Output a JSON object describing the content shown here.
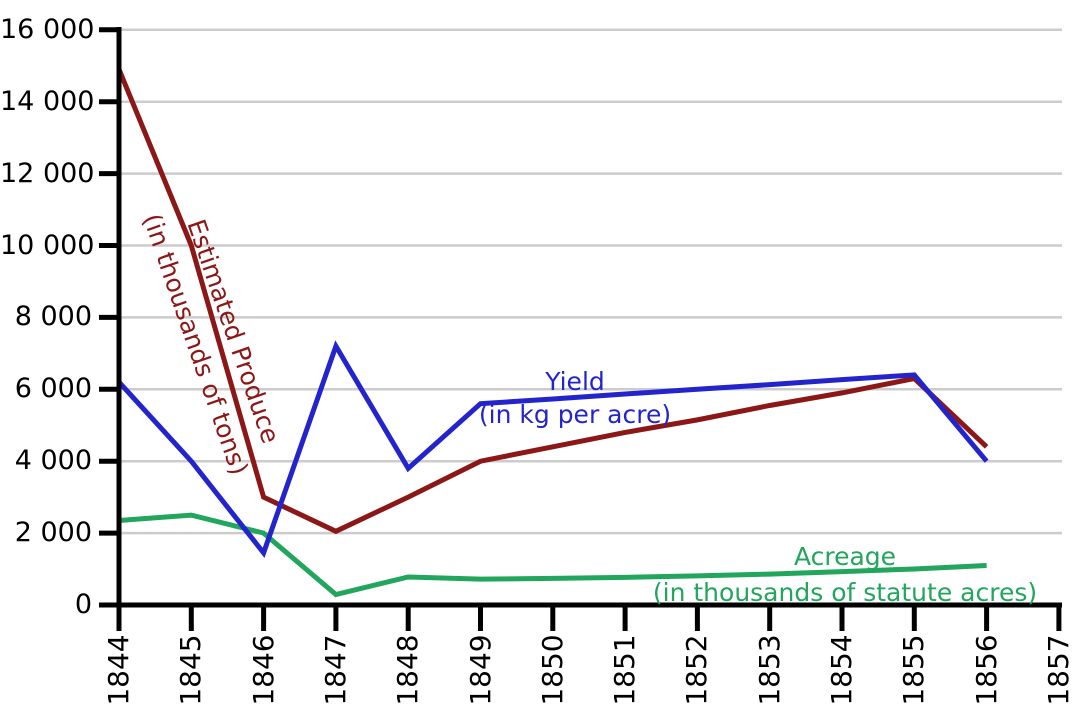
{
  "chart_data": {
    "type": "line",
    "title": "",
    "xlabel": "",
    "ylabel": "",
    "x_range": [
      1844,
      1857
    ],
    "y_range": [
      0,
      16000
    ],
    "grid": true,
    "legend_position": "inline-labels-on-lines",
    "x_tick_labels": [
      "1844",
      "1845",
      "1846",
      "1847",
      "1848",
      "1849",
      "1850",
      "1851",
      "1852",
      "1853",
      "1854",
      "1855",
      "1856",
      "1857"
    ],
    "y_tick_values": [
      0,
      2000,
      4000,
      6000,
      8000,
      10000,
      12000,
      14000,
      16000
    ],
    "y_tick_labels": [
      "0",
      "2 000",
      "4 000",
      "6 000",
      "8 000",
      "10 000",
      "12 000",
      "14 000",
      "16 000"
    ],
    "years": [
      1844,
      1845,
      1846,
      1847,
      1848,
      1849,
      1850,
      1851,
      1852,
      1853,
      1854,
      1855,
      1856
    ],
    "series": [
      {
        "id": "estimated-produce",
        "label_lines": [
          "Estimated Produce",
          "(in thousands of tons)"
        ],
        "color": "#8c1717",
        "values": [
          14900,
          10000,
          3000,
          2050,
          3000,
          4000,
          4400,
          4800,
          5150,
          5550,
          5900,
          6300,
          4400
        ]
      },
      {
        "id": "yield",
        "label_lines": [
          "Yield",
          "(in kg per acre)"
        ],
        "color": "#2424cc",
        "values": [
          6200,
          4000,
          1450,
          7200,
          3800,
          5600,
          5730,
          5870,
          6000,
          6130,
          6270,
          6400,
          4000
        ]
      },
      {
        "id": "acreage",
        "label_lines": [
          "Acreage",
          "(in thousands of statute acres)"
        ],
        "color": "#22a55c",
        "values": [
          2350,
          2500,
          2000,
          290,
          780,
          720,
          740,
          770,
          810,
          860,
          930,
          1000,
          1100
        ]
      }
    ],
    "colors": {
      "background": "#ffffff",
      "axis": "#000000",
      "grid": "#cccccc",
      "tick_text": "#000000"
    }
  }
}
